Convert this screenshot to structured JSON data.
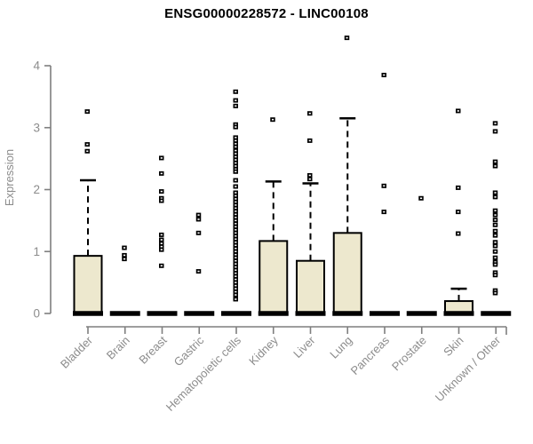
{
  "colors": {
    "box_fill": "#EDE8CE",
    "box_stroke": "#000000",
    "median_color": "#000000",
    "outlier_color": "#000000",
    "axis_color": "#7f7f7f",
    "tick_label_color": "#8c8c8c",
    "title_color": "#000000",
    "background": "#ffffff"
  },
  "chart_data": {
    "type": "boxplot",
    "title": "ENSG00000228572 - LINC00108",
    "xlabel": "",
    "ylabel": "Expression",
    "ylim": [
      0,
      4.5
    ],
    "yticks": [
      0,
      1,
      2,
      3,
      4
    ],
    "grid": false,
    "legend": false,
    "categories": [
      "Bladder",
      "Brain",
      "Breast",
      "Gastric",
      "Hematopoietic cells",
      "Kidney",
      "Liver",
      "Lung",
      "Pancreas",
      "Prostate",
      "Skin",
      "Unknown / Other"
    ],
    "series": [
      {
        "name": "Bladder",
        "min": 0,
        "q1": 0,
        "median": 0,
        "q3": 0.93,
        "whisker_high": 2.15,
        "outliers": [
          3.26,
          2.73,
          2.62
        ]
      },
      {
        "name": "Brain",
        "min": 0,
        "q1": 0,
        "median": 0,
        "q3": 0,
        "whisker_high": 0,
        "outliers": [
          1.06,
          0.94,
          0.88
        ]
      },
      {
        "name": "Breast",
        "min": 0,
        "q1": 0,
        "median": 0,
        "q3": 0,
        "whisker_high": 0,
        "outliers": [
          2.51,
          2.26,
          1.97,
          1.86,
          1.82,
          1.27,
          1.19,
          1.13,
          1.08,
          1.03,
          0.77
        ]
      },
      {
        "name": "Gastric",
        "min": 0,
        "q1": 0,
        "median": 0,
        "q3": 0,
        "whisker_high": 0,
        "outliers": [
          1.59,
          1.52,
          1.3,
          0.68
        ]
      },
      {
        "name": "Hematopoietic cells",
        "min": 0,
        "q1": 0,
        "median": 0,
        "q3": 0,
        "whisker_high": 0,
        "outliers": [
          3.58,
          3.44,
          3.35,
          3.05,
          3.01,
          2.84,
          2.79,
          2.74,
          2.69,
          2.63,
          2.58,
          2.53,
          2.48,
          2.43,
          2.38,
          2.33,
          2.29,
          2.15,
          2.05,
          1.95,
          1.9,
          1.85,
          1.8,
          1.75,
          1.7,
          1.65,
          1.6,
          1.55,
          1.5,
          1.45,
          1.4,
          1.35,
          1.3,
          1.25,
          1.2,
          1.15,
          1.1,
          1.05,
          1.0,
          0.95,
          0.9,
          0.85,
          0.8,
          0.75,
          0.7,
          0.65,
          0.6,
          0.55,
          0.5,
          0.45,
          0.4,
          0.35,
          0.3,
          0.23
        ]
      },
      {
        "name": "Kidney",
        "min": 0,
        "q1": 0,
        "median": 0,
        "q3": 1.17,
        "whisker_high": 2.13,
        "outliers": [
          3.13
        ]
      },
      {
        "name": "Liver",
        "min": 0,
        "q1": 0,
        "median": 0,
        "q3": 0.85,
        "whisker_high": 2.1,
        "outliers": [
          3.23,
          2.79,
          2.23,
          2.17
        ]
      },
      {
        "name": "Lung",
        "min": 0,
        "q1": 0,
        "median": 0,
        "q3": 1.3,
        "whisker_high": 3.15,
        "outliers": [
          4.45
        ]
      },
      {
        "name": "Pancreas",
        "min": 0,
        "q1": 0,
        "median": 0,
        "q3": 0,
        "whisker_high": 0,
        "outliers": [
          3.85,
          2.06,
          1.64
        ]
      },
      {
        "name": "Prostate",
        "min": 0,
        "q1": 0,
        "median": 0,
        "q3": 0,
        "whisker_high": 0,
        "outliers": [
          1.86
        ]
      },
      {
        "name": "Skin",
        "min": 0,
        "q1": 0,
        "median": 0,
        "q3": 0.2,
        "whisker_high": 0.4,
        "outliers": [
          3.27,
          2.03,
          1.64,
          1.29
        ]
      },
      {
        "name": "Unknown / Other",
        "min": 0,
        "q1": 0,
        "median": 0,
        "q3": 0,
        "whisker_high": 0,
        "outliers": [
          3.07,
          2.94,
          2.45,
          2.38,
          1.95,
          1.88,
          1.66,
          1.59,
          1.51,
          1.43,
          1.33,
          1.26,
          1.15,
          1.09,
          1.0,
          0.9,
          0.83,
          0.79,
          0.66,
          0.62,
          0.37,
          0.33
        ]
      }
    ]
  }
}
